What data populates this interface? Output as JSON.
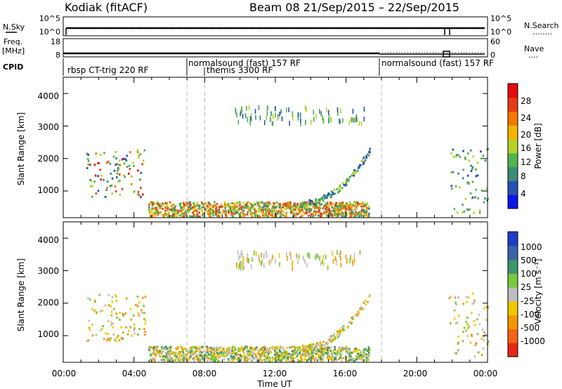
{
  "header": {
    "radar": "Kodiak (fitACF)",
    "beam_dates": "Beam 08  21/Sep/2015 – 22/Sep/2015"
  },
  "noise_panel": {
    "left_label": "N.Sky",
    "left_ticks": [
      "10^5",
      "10^0"
    ],
    "right_ticks": [
      "10^5",
      "10^0"
    ],
    "right_label": "N.Search",
    "right_legend": "........"
  },
  "freq_panel": {
    "left_label_1": "Freq.",
    "left_label_2": "[MHz]",
    "left_ticks": [
      "18",
      "8"
    ],
    "right_ticks": [
      "60",
      "0"
    ],
    "right_label": "Nave",
    "right_legend": "...."
  },
  "cpid": {
    "label": "CPID",
    "segments": [
      {
        "text": "rbsp CT-trig 220 RF"
      },
      {
        "text": "normalsound (fast) 157 RF"
      },
      {
        "text": "themis 3300 RF"
      },
      {
        "text": "normalsound (fast) 157 RF"
      }
    ]
  },
  "time_axis": {
    "ticks": [
      "00:00",
      "04:00",
      "08:00",
      "12:00",
      "16:00",
      "20:00",
      "00:00"
    ],
    "label": "Time UT"
  },
  "range_axis": {
    "ticks": [
      "4000",
      "3000",
      "2000",
      "1000"
    ],
    "label": "Slant Range [km]"
  },
  "power_colorbar": {
    "label": "Power [dB]",
    "ticks": [
      "28",
      "24",
      "20",
      "16",
      "12",
      "8",
      "4"
    ],
    "colors": [
      "#0a14e6",
      "#2850b4",
      "#3c8c78",
      "#50b450",
      "#b4d228",
      "#f5b400",
      "#f57800",
      "#e63c14",
      "#e60a0a"
    ]
  },
  "velocity_colorbar": {
    "label": "Velocity [m s⁻¹]",
    "ticks": [
      "1000",
      "500",
      "100",
      "25",
      "-25",
      "-100",
      "-500",
      "-1000"
    ],
    "colors": [
      "#1e3cc8",
      "#3c64aa",
      "#3c966e",
      "#78c83c",
      "#bebebe",
      "#f0c800",
      "#f59600",
      "#f56414",
      "#e62814"
    ]
  },
  "chart_data": {
    "type": "heatmap",
    "x_unit": "hours UT from 21/Sep/2015 00:00",
    "xlim": [
      0,
      24
    ],
    "ylim": [
      180,
      4500
    ],
    "echo_regions": [
      {
        "t": [
          1.3,
          4.6
        ],
        "r": [
          800,
          2250
        ],
        "note": "early echoes"
      },
      {
        "t": [
          4.8,
          17.3
        ],
        "r": [
          200,
          650
        ],
        "note": "near-range band"
      },
      {
        "t": [
          13.5,
          17.3
        ],
        "r": [
          600,
          2200
        ],
        "note": "rising arc"
      },
      {
        "t": [
          9.7,
          17.0
        ],
        "r": [
          3100,
          3600
        ],
        "note": "far-range streaks"
      },
      {
        "t": [
          21.8,
          24.0
        ],
        "r": [
          300,
          2300
        ],
        "note": "late echoes"
      }
    ]
  }
}
